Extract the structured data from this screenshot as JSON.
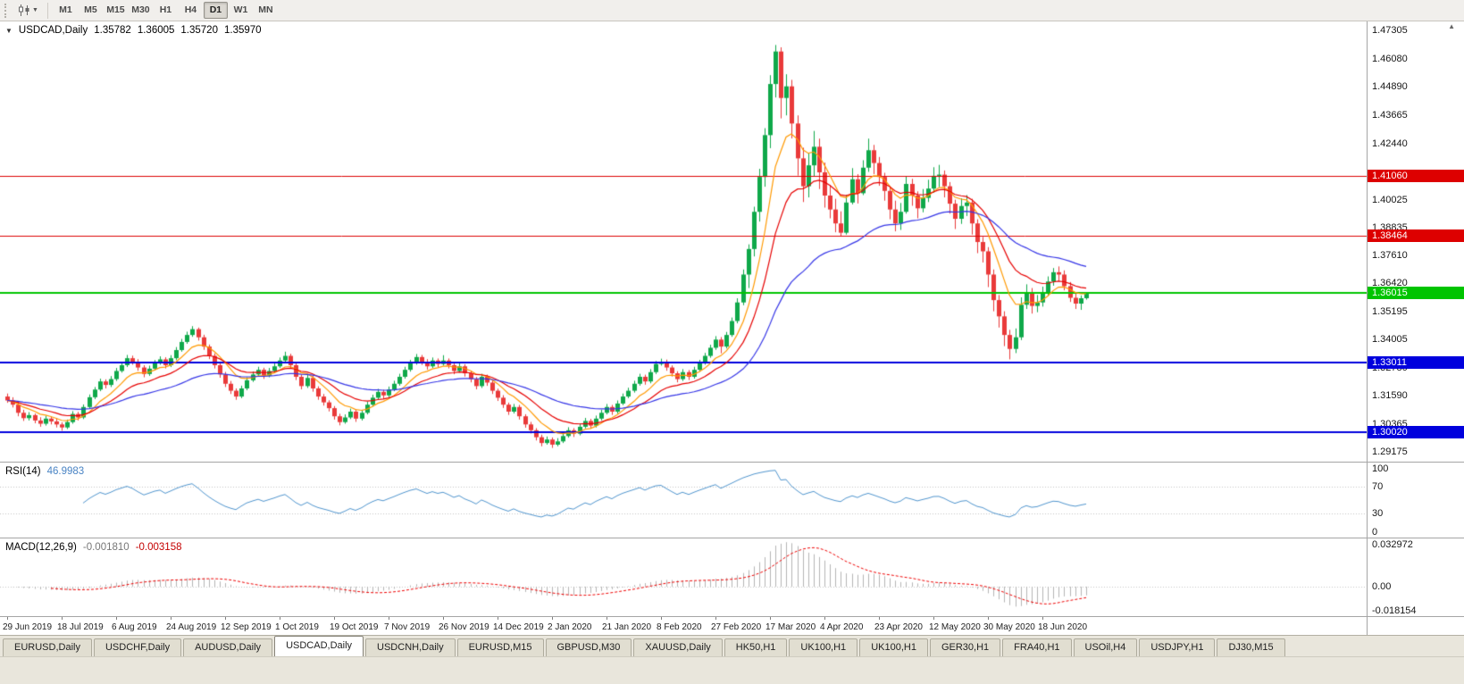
{
  "toolbar": {
    "timeframes": [
      "M1",
      "M5",
      "M15",
      "M30",
      "H1",
      "H4",
      "D1",
      "W1",
      "MN"
    ],
    "selected_timeframe": "D1"
  },
  "chart": {
    "symbol_period": "USDCAD,Daily",
    "open": "1.35782",
    "high": "1.36005",
    "low": "1.35720",
    "close": "1.35970"
  },
  "price_scale": {
    "ticks": [
      "1.47305",
      "1.46080",
      "1.44890",
      "1.43665",
      "1.42440",
      "1.40025",
      "1.38835",
      "1.37610",
      "1.36420",
      "1.35195",
      "1.34005",
      "1.32780",
      "1.31590",
      "1.30365",
      "1.29175"
    ]
  },
  "rsi": {
    "label": "RSI(14)",
    "value": "46.9983",
    "scale_labels": [
      "100",
      "70",
      "30",
      "0"
    ]
  },
  "macd": {
    "label": "MACD(12,26,9)",
    "value1": "-0.001810",
    "value2": "-0.003158",
    "scale_labels": [
      "0.032972",
      "0.00",
      "-0.018154"
    ]
  },
  "tabs": {
    "items": [
      "EURUSD,Daily",
      "USDCHF,Daily",
      "AUDUSD,Daily",
      "USDCAD,Daily",
      "USDCNH,Daily",
      "EURUSD,M15",
      "GBPUSD,M30",
      "XAUUSD,Daily",
      "HK50,H1",
      "UK100,H1",
      "UK100,H1",
      "GER30,H1",
      "FRA40,H1",
      "USOil,H4",
      "USDJPY,H1",
      "DJ30,M15"
    ],
    "selected_index": 3
  },
  "chart_data": {
    "type": "candlestick",
    "symbol": "USDCAD",
    "period": "Daily",
    "y_domain": [
      1.2894,
      1.4754
    ],
    "x_label_every": 10,
    "x_labels": [
      "29 Jun 2019",
      "18 Jul 2019",
      "6 Aug 2019",
      "24 Aug 2019",
      "12 Sep 2019",
      "1 Oct 2019",
      "19 Oct 2019",
      "7 Nov 2019",
      "26 Nov 2019",
      "14 Dec 2019",
      "2 Jan 2020",
      "21 Jan 2020",
      "8 Feb 2020",
      "27 Feb 2020",
      "17 Mar 2020",
      "4 Apr 2020",
      "23 Apr 2020",
      "12 May 2020",
      "30 May 2020",
      "18 Jun 2020"
    ],
    "colors": {
      "up": "#0fa84a",
      "down": "#e93a3a"
    },
    "moving_averages": [
      {
        "period": 8,
        "color": "#ff9900"
      },
      {
        "period": 16,
        "color": "#e60000"
      },
      {
        "period": 40,
        "color": "#3535e6"
      }
    ],
    "horizontal_lines": [
      {
        "price": 1.4106,
        "label": "1.41060",
        "color": "#dd0000",
        "width": 1
      },
      {
        "price": 1.38464,
        "label": "1.38464",
        "color": "#dd0000",
        "width": 1
      },
      {
        "price": 1.36015,
        "label": "1.36015",
        "color": "#00c400",
        "width": 2
      },
      {
        "price": 1.33011,
        "label": "1.33011",
        "color": "#0000dd",
        "width": 2
      },
      {
        "price": 1.3002,
        "label": "1.30020",
        "color": "#0000dd",
        "width": 2
      }
    ],
    "indicators": {
      "rsi": {
        "period": 14,
        "levels": [
          70,
          30
        ],
        "color": "#4f94cd",
        "current": "46.9983"
      },
      "macd": {
        "fast": 12,
        "slow": 26,
        "signal": 9,
        "histogram_color": "#b4b4b4",
        "signal_color": "#ee0000",
        "current_macd": "-0.001810",
        "current_signal": "-0.003158",
        "scale_max": 0.032972,
        "scale_min": -0.018154
      }
    },
    "candles": [
      [
        1.3155,
        1.3168,
        1.3128,
        1.3138
      ],
      [
        1.3138,
        1.3152,
        1.3108,
        1.312
      ],
      [
        1.312,
        1.3131,
        1.307,
        1.3085
      ],
      [
        1.3085,
        1.3098,
        1.305,
        1.3062
      ],
      [
        1.3062,
        1.3088,
        1.3052,
        1.3075
      ],
      [
        1.3075,
        1.3082,
        1.304,
        1.3052
      ],
      [
        1.3052,
        1.3066,
        1.3025,
        1.3038
      ],
      [
        1.3038,
        1.3072,
        1.303,
        1.306
      ],
      [
        1.306,
        1.3068,
        1.3035,
        1.3048
      ],
      [
        1.3048,
        1.3061,
        1.3022,
        1.3035
      ],
      [
        1.3035,
        1.3044,
        1.3008,
        1.3022
      ],
      [
        1.3022,
        1.3056,
        1.3015,
        1.3045
      ],
      [
        1.3045,
        1.3092,
        1.3038,
        1.308
      ],
      [
        1.308,
        1.3089,
        1.3052,
        1.3065
      ],
      [
        1.3065,
        1.3121,
        1.3058,
        1.311
      ],
      [
        1.311,
        1.3164,
        1.3102,
        1.3152
      ],
      [
        1.3152,
        1.3196,
        1.3144,
        1.3185
      ],
      [
        1.3185,
        1.3232,
        1.3178,
        1.322
      ],
      [
        1.322,
        1.3229,
        1.319,
        1.3205
      ],
      [
        1.3205,
        1.3243,
        1.3196,
        1.323
      ],
      [
        1.323,
        1.3278,
        1.3222,
        1.3265
      ],
      [
        1.3265,
        1.3303,
        1.3258,
        1.329
      ],
      [
        1.329,
        1.3334,
        1.3282,
        1.332
      ],
      [
        1.332,
        1.3331,
        1.3292,
        1.3305
      ],
      [
        1.3305,
        1.3316,
        1.3266,
        1.328
      ],
      [
        1.328,
        1.329,
        1.3238,
        1.3252
      ],
      [
        1.3252,
        1.3288,
        1.3244,
        1.3275
      ],
      [
        1.3275,
        1.3312,
        1.3268,
        1.33
      ],
      [
        1.33,
        1.3328,
        1.3292,
        1.3315
      ],
      [
        1.3315,
        1.3324,
        1.3276,
        1.329
      ],
      [
        1.329,
        1.3333,
        1.3282,
        1.332
      ],
      [
        1.332,
        1.3368,
        1.3312,
        1.3355
      ],
      [
        1.3355,
        1.3403,
        1.3348,
        1.339
      ],
      [
        1.339,
        1.3434,
        1.3382,
        1.342
      ],
      [
        1.342,
        1.3458,
        1.3412,
        1.3445
      ],
      [
        1.3445,
        1.3452,
        1.3396,
        1.341
      ],
      [
        1.341,
        1.3421,
        1.3356,
        1.337
      ],
      [
        1.337,
        1.3379,
        1.3316,
        1.333
      ],
      [
        1.333,
        1.3341,
        1.3276,
        1.329
      ],
      [
        1.329,
        1.3299,
        1.3236,
        1.325
      ],
      [
        1.325,
        1.3261,
        1.3196,
        1.321
      ],
      [
        1.321,
        1.3222,
        1.3166,
        1.318
      ],
      [
        1.318,
        1.319,
        1.3141,
        1.3155
      ],
      [
        1.3155,
        1.3202,
        1.3148,
        1.319
      ],
      [
        1.319,
        1.3238,
        1.3182,
        1.3225
      ],
      [
        1.3225,
        1.3263,
        1.3218,
        1.325
      ],
      [
        1.325,
        1.3283,
        1.3242,
        1.327
      ],
      [
        1.327,
        1.3279,
        1.3231,
        1.3245
      ],
      [
        1.3245,
        1.3278,
        1.3238,
        1.3265
      ],
      [
        1.3265,
        1.3298,
        1.3258,
        1.3285
      ],
      [
        1.3285,
        1.3323,
        1.3278,
        1.331
      ],
      [
        1.331,
        1.3348,
        1.3302,
        1.333
      ],
      [
        1.333,
        1.3339,
        1.3276,
        1.329
      ],
      [
        1.329,
        1.3301,
        1.3226,
        1.324
      ],
      [
        1.324,
        1.3251,
        1.3186,
        1.32
      ],
      [
        1.32,
        1.3248,
        1.3192,
        1.3235
      ],
      [
        1.3235,
        1.3244,
        1.3176,
        1.319
      ],
      [
        1.319,
        1.3199,
        1.3141,
        1.3155
      ],
      [
        1.3155,
        1.3166,
        1.3116,
        1.313
      ],
      [
        1.313,
        1.3139,
        1.3091,
        1.3105
      ],
      [
        1.3105,
        1.3114,
        1.3056,
        1.307
      ],
      [
        1.307,
        1.3081,
        1.3031,
        1.3045
      ],
      [
        1.3045,
        1.3078,
        1.3038,
        1.3065
      ],
      [
        1.3065,
        1.3103,
        1.3058,
        1.309
      ],
      [
        1.309,
        1.3099,
        1.3046,
        1.306
      ],
      [
        1.306,
        1.3098,
        1.3052,
        1.3085
      ],
      [
        1.3085,
        1.3133,
        1.3078,
        1.312
      ],
      [
        1.312,
        1.3163,
        1.3112,
        1.315
      ],
      [
        1.315,
        1.3188,
        1.3142,
        1.3175
      ],
      [
        1.3175,
        1.3184,
        1.3146,
        1.316
      ],
      [
        1.316,
        1.3198,
        1.3152,
        1.3185
      ],
      [
        1.3185,
        1.3223,
        1.3178,
        1.321
      ],
      [
        1.321,
        1.3253,
        1.3202,
        1.324
      ],
      [
        1.324,
        1.3283,
        1.3232,
        1.327
      ],
      [
        1.327,
        1.3313,
        1.3262,
        1.33
      ],
      [
        1.33,
        1.3338,
        1.3292,
        1.3325
      ],
      [
        1.3325,
        1.3334,
        1.3291,
        1.3305
      ],
      [
        1.3305,
        1.3316,
        1.3271,
        1.3285
      ],
      [
        1.3285,
        1.3323,
        1.3278,
        1.331
      ],
      [
        1.331,
        1.3319,
        1.3281,
        1.3295
      ],
      [
        1.3295,
        1.3333,
        1.3288,
        1.331
      ],
      [
        1.331,
        1.3319,
        1.3276,
        1.329
      ],
      [
        1.329,
        1.3299,
        1.3251,
        1.3265
      ],
      [
        1.3265,
        1.3298,
        1.3258,
        1.3285
      ],
      [
        1.3285,
        1.3294,
        1.3241,
        1.3255
      ],
      [
        1.3255,
        1.3266,
        1.3216,
        1.323
      ],
      [
        1.323,
        1.3239,
        1.3186,
        1.32
      ],
      [
        1.32,
        1.3253,
        1.3192,
        1.324
      ],
      [
        1.324,
        1.3249,
        1.3201,
        1.3215
      ],
      [
        1.3215,
        1.3224,
        1.3166,
        1.318
      ],
      [
        1.318,
        1.3189,
        1.3136,
        1.315
      ],
      [
        1.315,
        1.3161,
        1.3106,
        1.312
      ],
      [
        1.312,
        1.3129,
        1.3076,
        1.309
      ],
      [
        1.309,
        1.3123,
        1.3082,
        1.311
      ],
      [
        1.311,
        1.3119,
        1.3056,
        1.307
      ],
      [
        1.307,
        1.3079,
        1.3021,
        1.3035
      ],
      [
        1.3035,
        1.3046,
        1.2996,
        1.301
      ],
      [
        1.301,
        1.3019,
        1.2966,
        1.298
      ],
      [
        1.298,
        1.2991,
        1.2941,
        1.2955
      ],
      [
        1.2955,
        1.2983,
        1.2948,
        1.297
      ],
      [
        1.297,
        1.2979,
        1.2934,
        1.2948
      ],
      [
        1.2948,
        1.2976,
        1.2941,
        1.2962
      ],
      [
        1.2962,
        1.2998,
        1.2955,
        1.2985
      ],
      [
        1.2985,
        1.3023,
        1.2978,
        1.301
      ],
      [
        1.301,
        1.3019,
        1.2981,
        1.2995
      ],
      [
        1.2995,
        1.3038,
        1.2988,
        1.3025
      ],
      [
        1.3025,
        1.3063,
        1.3018,
        1.305
      ],
      [
        1.305,
        1.3059,
        1.3016,
        1.303
      ],
      [
        1.303,
        1.3073,
        1.3022,
        1.306
      ],
      [
        1.306,
        1.3098,
        1.3052,
        1.3085
      ],
      [
        1.3085,
        1.3123,
        1.3078,
        1.311
      ],
      [
        1.311,
        1.3119,
        1.3076,
        1.309
      ],
      [
        1.309,
        1.3138,
        1.3082,
        1.3125
      ],
      [
        1.3125,
        1.3168,
        1.3118,
        1.3155
      ],
      [
        1.3155,
        1.3193,
        1.3148,
        1.318
      ],
      [
        1.318,
        1.3223,
        1.3172,
        1.321
      ],
      [
        1.321,
        1.3253,
        1.3202,
        1.324
      ],
      [
        1.324,
        1.3249,
        1.3206,
        1.322
      ],
      [
        1.322,
        1.3273,
        1.3212,
        1.326
      ],
      [
        1.326,
        1.3308,
        1.3252,
        1.3295
      ],
      [
        1.3295,
        1.3318,
        1.3288,
        1.3305
      ],
      [
        1.3305,
        1.3314,
        1.3266,
        1.328
      ],
      [
        1.328,
        1.3289,
        1.3241,
        1.3255
      ],
      [
        1.3255,
        1.3264,
        1.3216,
        1.323
      ],
      [
        1.323,
        1.3273,
        1.3222,
        1.326
      ],
      [
        1.326,
        1.3269,
        1.3226,
        1.324
      ],
      [
        1.324,
        1.3283,
        1.3232,
        1.327
      ],
      [
        1.327,
        1.3313,
        1.3262,
        1.33
      ],
      [
        1.33,
        1.3343,
        1.3292,
        1.333
      ],
      [
        1.333,
        1.3378,
        1.3322,
        1.3365
      ],
      [
        1.3365,
        1.3415,
        1.3356,
        1.34
      ],
      [
        1.34,
        1.3411,
        1.3341,
        1.337
      ],
      [
        1.337,
        1.3433,
        1.3362,
        1.342
      ],
      [
        1.342,
        1.3495,
        1.3412,
        1.348
      ],
      [
        1.348,
        1.3578,
        1.347,
        1.356
      ],
      [
        1.356,
        1.3702,
        1.3548,
        1.368
      ],
      [
        1.368,
        1.381,
        1.3622,
        1.379
      ],
      [
        1.379,
        1.3972,
        1.3758,
        1.395
      ],
      [
        1.395,
        1.4135,
        1.3908,
        1.41
      ],
      [
        1.41,
        1.431,
        1.4058,
        1.428
      ],
      [
        1.428,
        1.4538,
        1.4224,
        1.45
      ],
      [
        1.45,
        1.4668,
        1.4442,
        1.464
      ],
      [
        1.464,
        1.4658,
        1.4352,
        1.444
      ],
      [
        1.444,
        1.4542,
        1.4365,
        1.449
      ],
      [
        1.449,
        1.4518,
        1.4266,
        1.433
      ],
      [
        1.433,
        1.4365,
        1.4106,
        1.418
      ],
      [
        1.418,
        1.4226,
        1.3992,
        1.406
      ],
      [
        1.406,
        1.4202,
        1.4012,
        1.415
      ],
      [
        1.415,
        1.4298,
        1.4102,
        1.423
      ],
      [
        1.423,
        1.4265,
        1.4048,
        1.412
      ],
      [
        1.412,
        1.4162,
        1.3968,
        1.402
      ],
      [
        1.402,
        1.4066,
        1.3922,
        1.396
      ],
      [
        1.396,
        1.4006,
        1.3862,
        1.39
      ],
      [
        1.39,
        1.3952,
        1.3845,
        1.386
      ],
      [
        1.386,
        1.4022,
        1.3852,
        1.399
      ],
      [
        1.399,
        1.4138,
        1.3982,
        1.409
      ],
      [
        1.409,
        1.4112,
        1.3986,
        1.403
      ],
      [
        1.403,
        1.4172,
        1.4022,
        1.414
      ],
      [
        1.414,
        1.4265,
        1.4122,
        1.4215
      ],
      [
        1.4215,
        1.4238,
        1.4112,
        1.416
      ],
      [
        1.416,
        1.4186,
        1.4062,
        1.41
      ],
      [
        1.41,
        1.4118,
        1.3998,
        1.404
      ],
      [
        1.404,
        1.4058,
        1.3918,
        1.396
      ],
      [
        1.396,
        1.3998,
        1.3866,
        1.39
      ],
      [
        1.39,
        1.3988,
        1.3872,
        1.395
      ],
      [
        1.395,
        1.4102,
        1.3942,
        1.407
      ],
      [
        1.407,
        1.4092,
        1.3976,
        1.402
      ],
      [
        1.402,
        1.4038,
        1.3922,
        1.3965
      ],
      [
        1.3965,
        1.4048,
        1.3948,
        1.401
      ],
      [
        1.401,
        1.4088,
        1.3992,
        1.405
      ],
      [
        1.405,
        1.4142,
        1.4032,
        1.4105
      ],
      [
        1.4105,
        1.4152,
        1.4056,
        1.411
      ],
      [
        1.411,
        1.4128,
        1.4012,
        1.406
      ],
      [
        1.406,
        1.4078,
        1.3942,
        1.3985
      ],
      [
        1.3985,
        1.4002,
        1.3876,
        1.392
      ],
      [
        1.392,
        1.4008,
        1.3898,
        1.3975
      ],
      [
        1.3975,
        1.4022,
        1.3932,
        1.399
      ],
      [
        1.399,
        1.4006,
        1.3852,
        1.39
      ],
      [
        1.39,
        1.3918,
        1.3772,
        1.382
      ],
      [
        1.382,
        1.3842,
        1.3732,
        1.378
      ],
      [
        1.378,
        1.3798,
        1.3626,
        1.368
      ],
      [
        1.368,
        1.3702,
        1.3522,
        1.357
      ],
      [
        1.357,
        1.3592,
        1.3452,
        1.35
      ],
      [
        1.35,
        1.3522,
        1.3372,
        1.342
      ],
      [
        1.342,
        1.3442,
        1.3315,
        1.336
      ],
      [
        1.336,
        1.3448,
        1.3342,
        1.341
      ],
      [
        1.341,
        1.3582,
        1.3398,
        1.355
      ],
      [
        1.355,
        1.3638,
        1.3532,
        1.3605
      ],
      [
        1.3605,
        1.3622,
        1.3512,
        1.3545
      ],
      [
        1.3545,
        1.3592,
        1.3518,
        1.356
      ],
      [
        1.356,
        1.3628,
        1.3542,
        1.3605
      ],
      [
        1.3605,
        1.3672,
        1.3588,
        1.365
      ],
      [
        1.365,
        1.3708,
        1.3632,
        1.369
      ],
      [
        1.369,
        1.3715,
        1.3652,
        1.368
      ],
      [
        1.368,
        1.3698,
        1.3612,
        1.363
      ],
      [
        1.363,
        1.3648,
        1.3562,
        1.358
      ],
      [
        1.358,
        1.3598,
        1.3532,
        1.3555
      ],
      [
        1.3555,
        1.359,
        1.3528,
        1.3578
      ],
      [
        1.35782,
        1.36005,
        1.3572,
        1.3597
      ]
    ]
  }
}
